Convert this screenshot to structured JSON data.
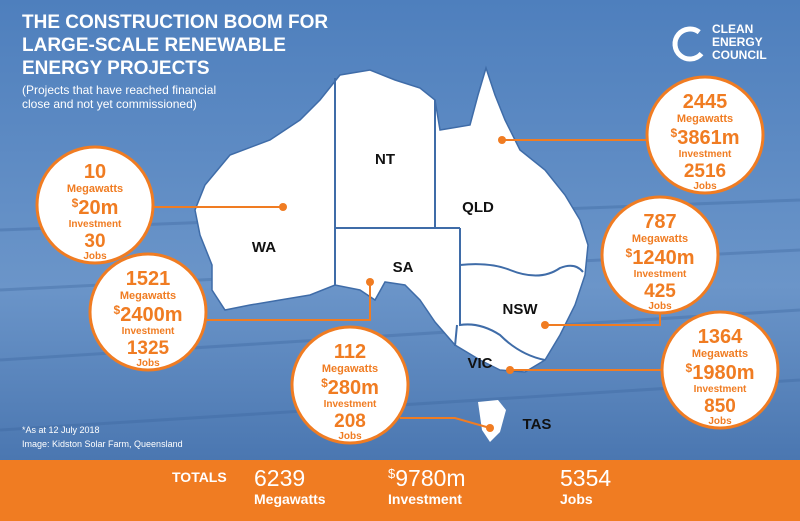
{
  "header": {
    "title_lines": [
      "THE CONSTRUCTION BOOM FOR",
      "LARGE-SCALE RENEWABLE",
      "ENERGY PROJECTS"
    ],
    "subtitle_lines": [
      "(Projects that have reached financial",
      "close and not yet commissioned)"
    ]
  },
  "logo": {
    "lines": [
      "CLEAN",
      "ENERGY",
      "COUNCIL"
    ]
  },
  "map": {
    "other_states": [
      "NT"
    ]
  },
  "units": {
    "megawatts": "Megawatts",
    "investment": "Investment",
    "jobs": "Jobs",
    "currency": "$"
  },
  "projects": [
    {
      "state": "QLD",
      "megawatts": "2445",
      "investment": "3861m",
      "jobs": "2516"
    },
    {
      "state": "WA",
      "megawatts": "10",
      "investment": "20m",
      "jobs": "30"
    },
    {
      "state": "NSW",
      "megawatts": "787",
      "investment": "1240m",
      "jobs": "425"
    },
    {
      "state": "SA",
      "megawatts": "1521",
      "investment": "2400m",
      "jobs": "1325"
    },
    {
      "state": "VIC",
      "megawatts": "1364",
      "investment": "1980m",
      "jobs": "850"
    },
    {
      "state": "TAS",
      "megawatts": "112",
      "investment": "280m",
      "jobs": "208"
    }
  ],
  "notes": [
    "*As at 12 July 2018",
    "Image: Kidston Solar Farm, Queensland"
  ],
  "totals": {
    "label": "TOTALS",
    "megawatts": "6239",
    "investment": "9780m",
    "jobs": "5354"
  }
}
